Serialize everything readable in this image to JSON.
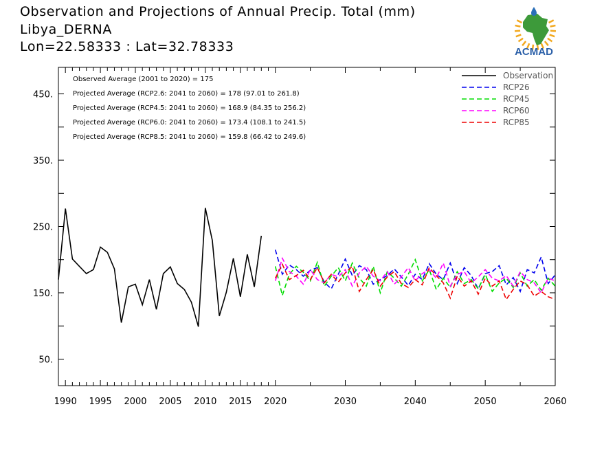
{
  "header": {
    "title": "Observation and Projections of Annual Precip. Total (mm)",
    "location": "Libya_DERNA",
    "coords": "Lon=22.58333 : Lat=32.78333"
  },
  "logo": {
    "text": "ACMAD",
    "colors": {
      "africa": "#3d9a3a",
      "rays": "#f2a81d",
      "drop": "#2a6fb8",
      "text": "#2a5fa8"
    }
  },
  "annotations": [
    "Observed Average (2001 to 2020) = 175",
    "Projected Average (RCP2.6: 2041 to 2060) = 178 (97.01 to 261.8)",
    "Projected Average (RCP4.5: 2041 to 2060) = 168.9 (84.35 to 256.2)",
    "Projected Average (RCP6.0: 2041 to 2060) = 173.4 (108.1 to 241.5)",
    "Projected Average (RCP8.5: 2041 to 2060) = 159.8 (66.42 to 249.6)"
  ],
  "chart_data": {
    "type": "line",
    "xlim": [
      1989,
      2060
    ],
    "ylim": [
      10,
      490
    ],
    "x_ticks": [
      1990,
      1995,
      2000,
      2005,
      2010,
      2015,
      2020,
      2030,
      2040,
      2050,
      2060
    ],
    "y_ticks": [
      50,
      150,
      250,
      350,
      450
    ],
    "y_tick_labels": [
      "50.",
      "150.",
      "250.",
      "350.",
      "450."
    ],
    "legend_position": "top-right",
    "series": [
      {
        "name": "Observation",
        "color": "#000000",
        "dashed": false,
        "x": [
          1989,
          1990,
          1991,
          1992,
          1993,
          1994,
          1995,
          1996,
          1997,
          1998,
          1999,
          2000,
          2001,
          2002,
          2003,
          2004,
          2005,
          2006,
          2007,
          2008,
          2009,
          2010,
          2011,
          2012,
          2013,
          2014,
          2015,
          2016,
          2017,
          2018,
          2019,
          2020
        ],
        "values": [
          170,
          277,
          201,
          190,
          179,
          185,
          219,
          211,
          186,
          105,
          159,
          163,
          132,
          170,
          125,
          179,
          189,
          164,
          155,
          136,
          99,
          278,
          229,
          115,
          151,
          202,
          144,
          208,
          159,
          236,
          null,
          null
        ]
      },
      {
        "name": "RCP26",
        "color": "#0000ee",
        "dashed": true,
        "x": [
          2020,
          2021,
          2022,
          2023,
          2024,
          2025,
          2026,
          2027,
          2028,
          2029,
          2030,
          2031,
          2032,
          2033,
          2034,
          2035,
          2036,
          2037,
          2038,
          2039,
          2040,
          2041,
          2042,
          2043,
          2044,
          2045,
          2046,
          2047,
          2048,
          2049,
          2050,
          2051,
          2052,
          2053,
          2054,
          2055,
          2056,
          2057,
          2058,
          2059,
          2060
        ],
        "values": [
          215,
          178,
          192,
          185,
          175,
          184,
          188,
          166,
          156,
          178,
          201,
          176,
          191,
          185,
          163,
          170,
          176,
          186,
          174,
          161,
          178,
          170,
          194,
          178,
          170,
          195,
          164,
          188,
          176,
          156,
          179,
          182,
          191,
          162,
          173,
          152,
          185,
          180,
          204,
          164,
          177
        ]
      },
      {
        "name": "RCP45",
        "color": "#00dd00",
        "dashed": true,
        "x": [
          2020,
          2021,
          2022,
          2023,
          2024,
          2025,
          2026,
          2027,
          2028,
          2029,
          2030,
          2031,
          2032,
          2033,
          2034,
          2035,
          2036,
          2037,
          2038,
          2039,
          2040,
          2041,
          2042,
          2043,
          2044,
          2045,
          2046,
          2047,
          2048,
          2049,
          2050,
          2051,
          2052,
          2053,
          2054,
          2055,
          2056,
          2057,
          2058,
          2059,
          2060
        ],
        "values": [
          190,
          146,
          178,
          190,
          181,
          168,
          196,
          160,
          175,
          188,
          168,
          195,
          172,
          160,
          190,
          150,
          182,
          172,
          160,
          178,
          200,
          168,
          185,
          155,
          172,
          158,
          182,
          164,
          170,
          156,
          178,
          152,
          165,
          172,
          158,
          180,
          160,
          170,
          154,
          172,
          160
        ]
      },
      {
        "name": "RCP60",
        "color": "#ff00ff",
        "dashed": true,
        "x": [
          2020,
          2021,
          2022,
          2023,
          2024,
          2025,
          2026,
          2027,
          2028,
          2029,
          2030,
          2031,
          2032,
          2033,
          2034,
          2035,
          2036,
          2037,
          2038,
          2039,
          2040,
          2041,
          2042,
          2043,
          2044,
          2045,
          2046,
          2047,
          2048,
          2049,
          2050,
          2051,
          2052,
          2053,
          2054,
          2055,
          2056,
          2057,
          2058,
          2059,
          2060
        ],
        "values": [
          168,
          202,
          182,
          175,
          163,
          185,
          170,
          165,
          178,
          174,
          185,
          160,
          180,
          190,
          175,
          168,
          182,
          163,
          174,
          188,
          168,
          179,
          185,
          172,
          195,
          160,
          178,
          182,
          165,
          174,
          185,
          172,
          168,
          176,
          160,
          182,
          170,
          165,
          150,
          172,
          168
        ]
      },
      {
        "name": "RCP85",
        "color": "#ee0000",
        "dashed": true,
        "x": [
          2020,
          2021,
          2022,
          2023,
          2024,
          2025,
          2026,
          2027,
          2028,
          2029,
          2030,
          2031,
          2032,
          2033,
          2034,
          2035,
          2036,
          2037,
          2038,
          2039,
          2040,
          2041,
          2042,
          2043,
          2044,
          2045,
          2046,
          2047,
          2048,
          2049,
          2050,
          2051,
          2052,
          2053,
          2054,
          2055,
          2056,
          2057,
          2058,
          2059,
          2060
        ],
        "values": [
          172,
          193,
          170,
          176,
          184,
          170,
          188,
          165,
          178,
          166,
          180,
          190,
          152,
          170,
          185,
          160,
          174,
          182,
          164,
          158,
          170,
          162,
          188,
          176,
          165,
          142,
          175,
          160,
          168,
          148,
          172,
          160,
          168,
          140,
          155,
          168,
          162,
          145,
          152,
          144,
          140
        ]
      }
    ]
  }
}
